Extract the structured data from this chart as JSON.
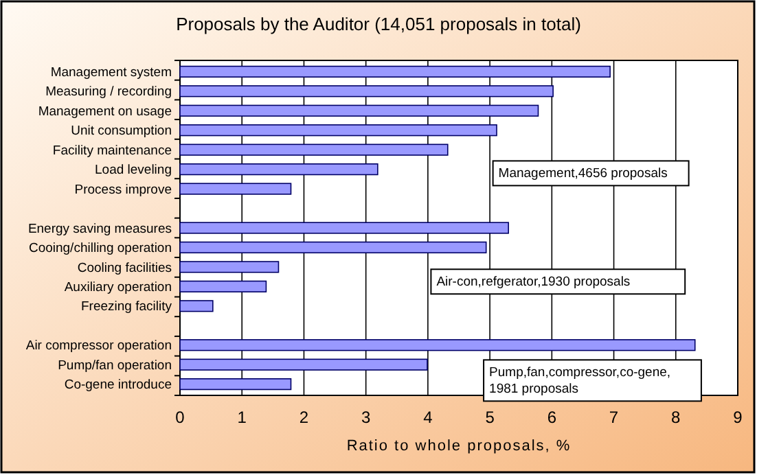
{
  "chart_data": {
    "type": "bar",
    "orientation": "horizontal",
    "title": "Proposals by the Auditor (14,051 proposals in total)",
    "xlabel": "Ratio to whole proposals, %",
    "categories": [
      "Management system",
      "Measuring / recording",
      "Management on usage",
      "Unit consumption",
      "Facility maintenance",
      "Load leveling",
      "Process improve",
      null,
      "Energy saving measures",
      "Cooing/chilling operation",
      "Cooling facilities",
      "Auxiliary operation",
      "Freezing facility",
      null,
      "Air compressor operation",
      "Pump/fan operation",
      "Co-gene introduce"
    ],
    "values": [
      6.94,
      6.02,
      5.78,
      5.11,
      4.32,
      3.19,
      1.79,
      null,
      5.3,
      4.94,
      1.59,
      1.39,
      0.53,
      null,
      8.31,
      3.99,
      1.79
    ],
    "color": "#9999ff",
    "xlim": [
      0,
      9
    ],
    "xticks": [
      0,
      1,
      2,
      3,
      4,
      5,
      6,
      7,
      8,
      9
    ],
    "grid": "x",
    "annotations": [
      "Management,4656 proposals",
      "Air-con,refgerator,1930 proposals",
      "Pump,fan,compressor,co-gene,\n1981 proposals"
    ]
  }
}
